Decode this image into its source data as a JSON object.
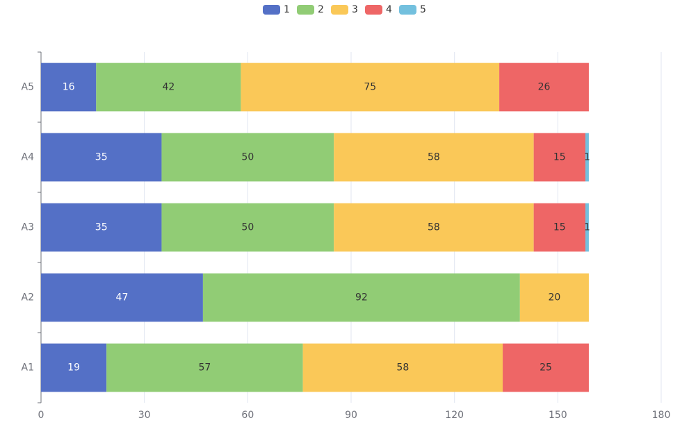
{
  "chart_data": {
    "type": "bar",
    "orientation": "horizontal",
    "stacked": true,
    "categories": [
      "A1",
      "A2",
      "A3",
      "A4",
      "A5"
    ],
    "series": [
      {
        "name": "1",
        "color": "#5470c6",
        "values": [
          19,
          47,
          35,
          35,
          16
        ]
      },
      {
        "name": "2",
        "color": "#91cc75",
        "values": [
          57,
          92,
          50,
          50,
          42
        ]
      },
      {
        "name": "3",
        "color": "#fac858",
        "values": [
          58,
          20,
          58,
          58,
          75
        ]
      },
      {
        "name": "4",
        "color": "#ee6666",
        "values": [
          25,
          null,
          15,
          15,
          26
        ]
      },
      {
        "name": "5",
        "color": "#73c0de",
        "values": [
          null,
          null,
          1,
          1,
          null
        ]
      }
    ],
    "xlim": [
      0,
      180
    ],
    "xticks": [
      0,
      30,
      60,
      90,
      120,
      150,
      180
    ],
    "grid": true
  }
}
